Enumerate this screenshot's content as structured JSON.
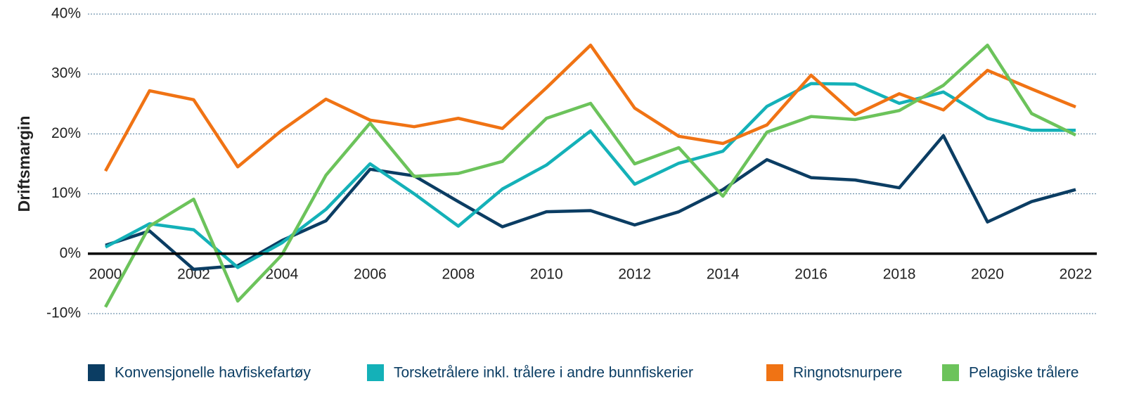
{
  "chart_data": {
    "type": "line",
    "ylabel": "Driftsmargin",
    "x": [
      2000,
      2001,
      2002,
      2003,
      2004,
      2005,
      2006,
      2007,
      2008,
      2009,
      2010,
      2011,
      2012,
      2013,
      2014,
      2015,
      2016,
      2017,
      2018,
      2019,
      2020,
      2021,
      2022
    ],
    "xlim": [
      2000,
      2022
    ],
    "xticks": [
      2000,
      2002,
      2004,
      2006,
      2008,
      2010,
      2012,
      2014,
      2016,
      2018,
      2020,
      2022
    ],
    "ylim": [
      -10,
      40
    ],
    "yticks": [
      {
        "value": -10,
        "label": "-10%"
      },
      {
        "value": 0,
        "label": "0%"
      },
      {
        "value": 10,
        "label": "10%"
      },
      {
        "value": 20,
        "label": "20%"
      },
      {
        "value": 30,
        "label": "30%"
      },
      {
        "value": 40,
        "label": "40%"
      }
    ],
    "grid": true,
    "legend": "bottom",
    "series": [
      {
        "name": "Konvensjonelle havfiskefartøy",
        "color": "#0b3d63",
        "values": [
          1.4,
          3.8,
          -2.6,
          -2.0,
          2.2,
          5.5,
          14.1,
          13.0,
          8.7,
          4.5,
          7.0,
          7.2,
          4.8,
          7.0,
          10.7,
          15.7,
          12.7,
          12.3,
          11.0,
          19.7,
          5.3,
          8.7,
          10.7
        ]
      },
      {
        "name": "Torsketrålere inkl. trålere i andre bunnfiskerier",
        "color": "#14b1b8",
        "values": [
          1.1,
          5.0,
          4.0,
          -2.3,
          1.8,
          7.4,
          15.0,
          10.0,
          4.6,
          10.8,
          14.8,
          20.5,
          11.6,
          15.1,
          17.1,
          24.6,
          28.4,
          28.3,
          25.1,
          27.0,
          22.6,
          20.6,
          20.6
        ]
      },
      {
        "name": "Ringnotsnurpere",
        "color": "#f07314",
        "values": [
          13.8,
          27.2,
          25.7,
          14.5,
          20.6,
          25.8,
          22.3,
          21.2,
          22.6,
          20.9,
          27.7,
          34.8,
          24.3,
          19.6,
          18.4,
          21.5,
          29.8,
          23.2,
          26.7,
          24.0,
          30.6,
          27.5,
          24.5
        ]
      },
      {
        "name": "Pelagiske trålere",
        "color": "#6cc35b",
        "values": [
          -8.9,
          4.6,
          9.1,
          -7.9,
          -0.2,
          13.1,
          21.8,
          12.9,
          13.4,
          15.4,
          22.6,
          25.1,
          15.0,
          17.7,
          9.6,
          20.3,
          22.9,
          22.4,
          23.9,
          28.1,
          34.8,
          23.4,
          19.8
        ]
      }
    ]
  }
}
